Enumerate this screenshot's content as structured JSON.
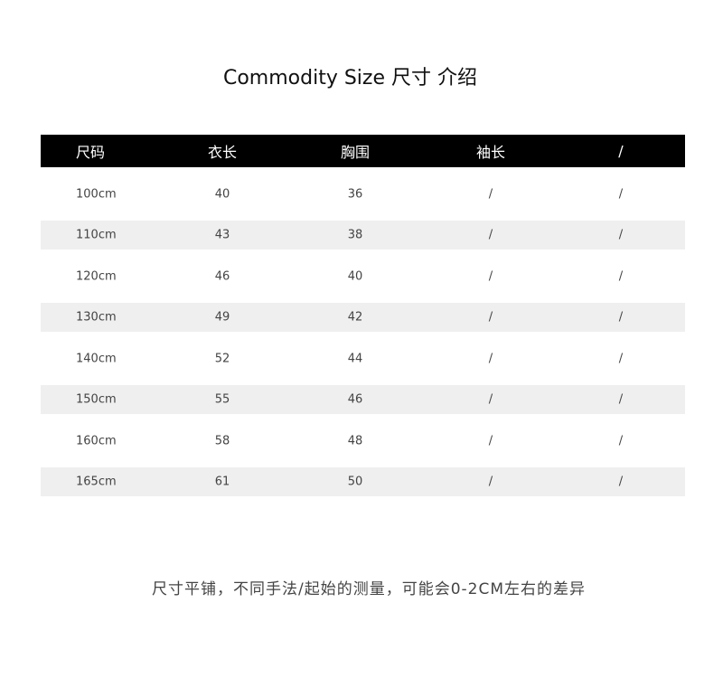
{
  "title": "Commodity Size  尺寸 介绍",
  "table": {
    "headers": [
      "尺码",
      "衣长",
      "胸围",
      "袖长",
      "/"
    ],
    "rows": [
      [
        "100cm",
        "40",
        "36",
        "/",
        "/"
      ],
      [
        "110cm",
        "43",
        "38",
        "/",
        "/"
      ],
      [
        "120cm",
        "46",
        "40",
        "/",
        "/"
      ],
      [
        "130cm",
        "49",
        "42",
        "/",
        "/"
      ],
      [
        "140cm",
        "52",
        "44",
        "/",
        "/"
      ],
      [
        "150cm",
        "55",
        "46",
        "/",
        "/"
      ],
      [
        "160cm",
        "58",
        "48",
        "/",
        "/"
      ],
      [
        "165cm",
        "61",
        "50",
        "/",
        "/"
      ]
    ]
  },
  "note": "尺寸平铺，不同手法/起始的测量，可能会0-2CM左右的差异",
  "colors": {
    "header_bg": "#000000",
    "stripe": "#efefef"
  }
}
